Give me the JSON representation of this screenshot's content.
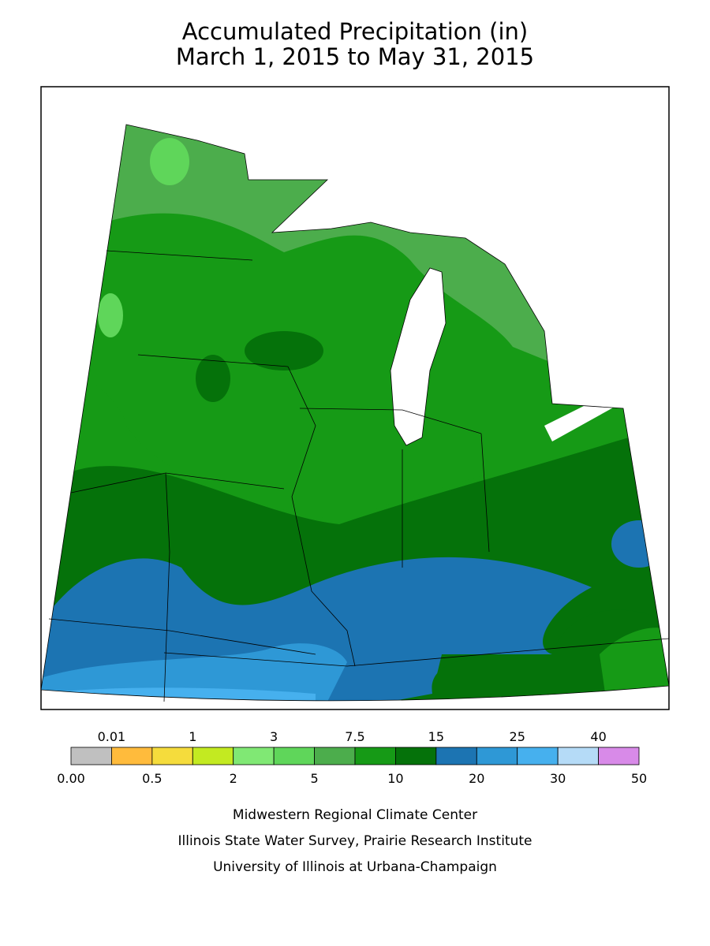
{
  "title": {
    "line1": "Accumulated Precipitation (in)",
    "line2": "March 1, 2015 to May 31, 2015"
  },
  "legend": {
    "boundaries": [
      "0.00",
      "0.01",
      "0.5",
      "1",
      "2",
      "3",
      "5",
      "7.5",
      "10",
      "15",
      "20",
      "25",
      "30",
      "40",
      "50"
    ],
    "colors": [
      "#c0c0c0",
      "#ffbb3c",
      "#f5dc3c",
      "#c3ea21",
      "#80e874",
      "#5fd65a",
      "#4cad4c",
      "#169a16",
      "#05720a",
      "#1c74b2",
      "#2e98d6",
      "#46b0ee",
      "#b5dbf7",
      "#d88ae8"
    ]
  },
  "credits": [
    "Midwestern Regional Climate Center",
    "Illinois State Water Survey, Prairie Research Institute",
    "University of Illinois at Urbana-Champaign"
  ]
}
